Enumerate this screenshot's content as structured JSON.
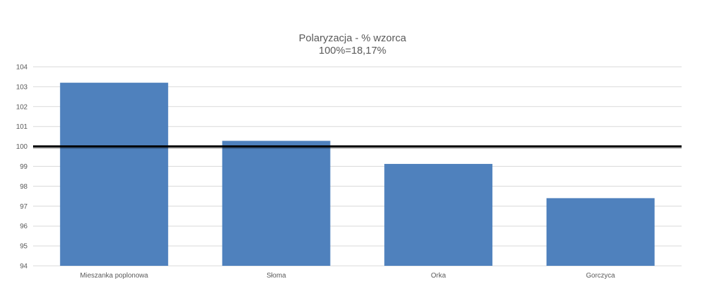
{
  "chart_data": {
    "type": "bar",
    "title": "Polaryzacja - % wzorca",
    "subtitle": "100%=18,17%",
    "xlabel": "",
    "ylabel": "",
    "categories": [
      "Mieszanka poplonowa",
      "Słoma",
      "Orka",
      "Gorczyca"
    ],
    "values": [
      103.2,
      100.28,
      99.12,
      97.4
    ],
    "ylim": [
      94,
      104
    ],
    "yticks": [
      "94",
      "95",
      "96",
      "97",
      "98",
      "99",
      "100",
      "101",
      "102",
      "103",
      "104"
    ],
    "reference_line": 100,
    "grid": true,
    "legend": "none",
    "bar_color": "#4f81bd",
    "reference_line_color": "#000000",
    "grid_color": "#d9d9d9"
  }
}
